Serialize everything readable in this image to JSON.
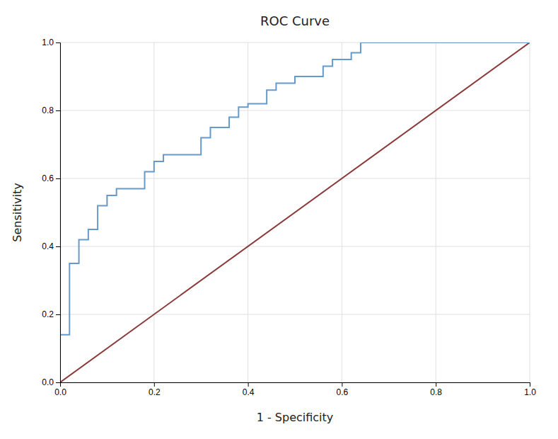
{
  "chart_data": {
    "type": "line",
    "title": "ROC Curve",
    "x_label": "1 - Specificity",
    "y_label": "Sensitivity",
    "series": [
      {
        "color": "#8B3A3A",
        "x": [
          0.0,
          1.0
        ],
        "values": [
          0.0,
          1.0
        ]
      },
      {
        "color": "#6699CC",
        "x": [
          0.0,
          0.0,
          0.02,
          0.02,
          0.04,
          0.04,
          0.06,
          0.06,
          0.08,
          0.08,
          0.1,
          0.1,
          0.12,
          0.12,
          0.18,
          0.18,
          0.2,
          0.2,
          0.22,
          0.22,
          0.3,
          0.3,
          0.32,
          0.32,
          0.36,
          0.36,
          0.38,
          0.38,
          0.4,
          0.4,
          0.44,
          0.44,
          0.46,
          0.46,
          0.5,
          0.5,
          0.56,
          0.56,
          0.58,
          0.58,
          0.62,
          0.62,
          0.64,
          0.64,
          0.7,
          0.7,
          0.74,
          0.74,
          1.0
        ],
        "values": [
          0.0,
          0.14,
          0.14,
          0.35,
          0.35,
          0.42,
          0.42,
          0.45,
          0.45,
          0.52,
          0.52,
          0.55,
          0.55,
          0.57,
          0.57,
          0.62,
          0.62,
          0.65,
          0.65,
          0.67,
          0.67,
          0.72,
          0.72,
          0.75,
          0.75,
          0.78,
          0.78,
          0.81,
          0.81,
          0.82,
          0.82,
          0.86,
          0.86,
          0.88,
          0.88,
          0.9,
          0.9,
          0.93,
          0.93,
          0.95,
          0.95,
          0.97,
          0.97,
          1.0,
          1.0,
          1.0,
          1.0,
          1.0,
          1.0
        ]
      }
    ],
    "xlim": [
      0.0,
      1.0
    ],
    "ylim": [
      0.0,
      1.0
    ],
    "xticks": [
      {
        "value": 0,
        "label": "0.0"
      },
      0.2,
      0.4,
      0.6,
      0.8,
      {
        "value": 1,
        "label": "1.0"
      }
    ],
    "yticks": [
      {
        "value": 0,
        "label": "0.0"
      },
      0.2,
      0.4,
      0.6,
      0.8,
      {
        "value": 1,
        "label": "1.0"
      }
    ],
    "grid": true
  }
}
